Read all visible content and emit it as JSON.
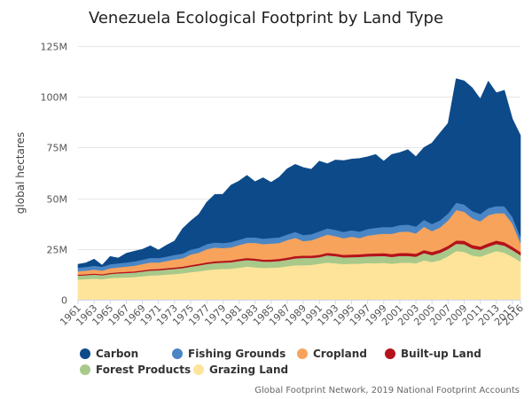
{
  "chart_data": {
    "type": "area",
    "stacked": true,
    "title": "Venezuela Ecological Footprint by Land Type",
    "ylabel": "global hectares",
    "xlabel": "",
    "ylim": [
      0,
      125000000
    ],
    "yticks": [
      {
        "value": 0,
        "label": "0"
      },
      {
        "value": 25000000,
        "label": "25M"
      },
      {
        "value": 50000000,
        "label": "50M"
      },
      {
        "value": 75000000,
        "label": "75M"
      },
      {
        "value": 100000000,
        "label": "100M"
      },
      {
        "value": 125000000,
        "label": "125M"
      }
    ],
    "xtick_labels": [
      "1961",
      "1963",
      "1965",
      "1967",
      "1969",
      "1971",
      "1973",
      "1975",
      "1977",
      "1979",
      "1981",
      "1983",
      "1985",
      "1987",
      "1989",
      "1991",
      "1993",
      "1995",
      "1997",
      "1999",
      "2001",
      "2003",
      "2005",
      "2007",
      "2009",
      "2011",
      "2013",
      "2015",
      "2016"
    ],
    "years": [
      1961,
      1962,
      1963,
      1964,
      1965,
      1966,
      1967,
      1968,
      1969,
      1970,
      1971,
      1972,
      1973,
      1974,
      1975,
      1976,
      1977,
      1978,
      1979,
      1980,
      1981,
      1982,
      1983,
      1984,
      1985,
      1986,
      1987,
      1988,
      1989,
      1990,
      1991,
      1992,
      1993,
      1994,
      1995,
      1996,
      1997,
      1998,
      1999,
      2000,
      2001,
      2002,
      2003,
      2004,
      2005,
      2006,
      2007,
      2008,
      2009,
      2010,
      2011,
      2012,
      2013,
      2014,
      2015,
      2016
    ],
    "series": [
      {
        "name": "Grazing Land",
        "color": "#fde49a",
        "values": [
          10.0,
          10.2,
          10.4,
          10.2,
          10.7,
          10.9,
          11.0,
          11.2,
          11.6,
          12.0,
          12.1,
          12.4,
          12.7,
          13.0,
          13.6,
          14.0,
          14.6,
          15.0,
          15.2,
          15.3,
          15.8,
          16.4,
          16.0,
          15.7,
          15.8,
          16.0,
          16.5,
          17.0,
          17.0,
          17.2,
          17.8,
          18.3,
          18.0,
          17.6,
          17.8,
          17.8,
          18.1,
          18.0,
          18.2,
          17.8,
          18.2,
          18.3,
          18.0,
          19.4,
          18.6,
          19.5,
          21.5,
          24.0,
          23.6,
          21.8,
          21.2,
          22.7,
          24.0,
          23.2,
          21.2,
          18.8
        ]
      },
      {
        "name": "Forest Products",
        "color": "#a8c98a",
        "values": [
          1.9,
          1.9,
          2.0,
          1.9,
          2.0,
          2.1,
          2.2,
          2.2,
          2.3,
          2.4,
          2.4,
          2.5,
          2.5,
          2.6,
          2.7,
          2.9,
          3.0,
          3.1,
          3.1,
          3.2,
          3.3,
          3.2,
          3.3,
          3.1,
          3.0,
          3.1,
          3.2,
          3.4,
          3.6,
          3.4,
          3.2,
          3.6,
          3.5,
          3.3,
          3.2,
          3.3,
          3.3,
          3.5,
          3.4,
          3.3,
          3.4,
          3.3,
          3.2,
          3.6,
          3.4,
          3.6,
          3.5,
          3.6,
          3.8,
          3.5,
          3.4,
          3.5,
          3.5,
          3.5,
          3.3,
          3.2
        ]
      },
      {
        "name": "Built-up Land",
        "color": "#b5121b",
        "values": [
          0.45,
          0.47,
          0.5,
          0.5,
          0.52,
          0.55,
          0.57,
          0.6,
          0.62,
          0.65,
          0.68,
          0.7,
          0.73,
          0.75,
          0.78,
          0.8,
          0.83,
          0.86,
          0.9,
          0.93,
          0.96,
          1.0,
          1.0,
          1.02,
          1.05,
          1.08,
          1.1,
          1.13,
          1.15,
          1.18,
          1.2,
          1.22,
          1.25,
          1.27,
          1.3,
          1.32,
          1.35,
          1.38,
          1.4,
          1.42,
          1.45,
          1.48,
          1.5,
          1.52,
          1.55,
          1.58,
          1.6,
          1.65,
          1.7,
          1.68,
          1.65,
          1.68,
          1.7,
          1.66,
          1.62,
          1.58
        ]
      },
      {
        "name": "Cropland",
        "color": "#f7a35c",
        "values": [
          1.7,
          1.8,
          2.0,
          1.8,
          2.3,
          2.4,
          2.6,
          2.8,
          3.1,
          3.4,
          3.2,
          3.5,
          3.9,
          4.1,
          5.2,
          5.5,
          6.5,
          6.8,
          6.3,
          6.4,
          6.9,
          7.4,
          7.8,
          7.6,
          7.8,
          7.8,
          8.6,
          9.0,
          7.2,
          7.5,
          8.5,
          9.0,
          8.6,
          8.2,
          8.8,
          8.0,
          8.9,
          9.3,
          9.6,
          10.0,
          10.4,
          10.6,
          10.0,
          11.5,
          10.3,
          11.0,
          12.5,
          15.0,
          14.3,
          13.2,
          12.4,
          13.8,
          13.5,
          14.3,
          11.5,
          4.4
        ]
      },
      {
        "name": "Fishing Grounds",
        "color": "#4a86c5",
        "values": [
          1.8,
          1.8,
          1.9,
          1.9,
          2.0,
          2.0,
          2.0,
          2.1,
          2.1,
          2.2,
          2.2,
          2.2,
          2.3,
          2.3,
          2.4,
          2.4,
          2.5,
          2.5,
          2.5,
          2.6,
          2.6,
          2.7,
          2.7,
          2.7,
          2.8,
          2.8,
          2.8,
          2.9,
          3.0,
          3.0,
          3.0,
          3.1,
          3.1,
          3.1,
          3.2,
          3.2,
          3.2,
          3.3,
          3.3,
          3.3,
          3.4,
          3.4,
          3.4,
          3.4,
          3.5,
          3.5,
          3.5,
          3.6,
          3.6,
          3.6,
          3.6,
          3.5,
          3.5,
          3.4,
          3.3,
          3.0
        ]
      },
      {
        "name": "Carbon",
        "color": "#0d4a8a",
        "values": [
          1.6,
          2.0,
          3.2,
          0.7,
          3.8,
          2.6,
          4.5,
          5.0,
          5.1,
          5.9,
          3.9,
          5.6,
          6.8,
          12.3,
          14.1,
          16.4,
          20.6,
          23.6,
          24.0,
          28.0,
          28.9,
          30.6,
          27.4,
          30.0,
          27.4,
          29.6,
          32.3,
          33.3,
          33.2,
          32.0,
          34.6,
          31.8,
          34.4,
          35.1,
          35.0,
          36.0,
          35.6,
          36.1,
          32.4,
          35.8,
          35.7,
          36.9,
          34.4,
          35.6,
          39.9,
          43.0,
          44.4,
          61.1,
          60.9,
          60.7,
          56.7,
          62.5,
          55.8,
          57.2,
          48.2,
          50.0
        ]
      }
    ]
  },
  "credit": "Global Footprint Network, 2019 National Footprint Accounts"
}
